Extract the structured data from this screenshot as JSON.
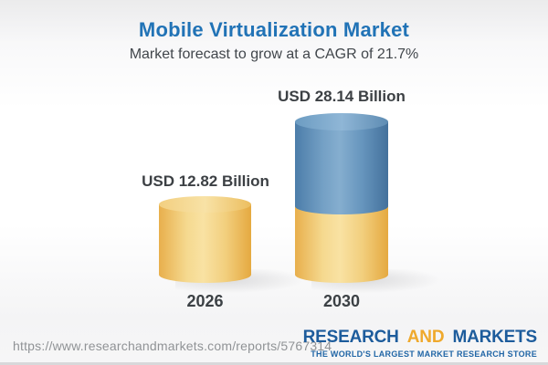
{
  "header": {
    "title": "Mobile Virtualization Market",
    "subtitle": "Market forecast to grow at a CAGR of 21.7%"
  },
  "chart_data": {
    "type": "bar",
    "bar_style": "3d-cylinder",
    "title": "Mobile Virtualization Market",
    "subtitle": "Market forecast to grow at a CAGR of 21.7%",
    "unit": "USD Billion",
    "cagr_percent": 21.7,
    "categories": [
      "2026",
      "2030"
    ],
    "values": [
      12.82,
      28.14
    ],
    "value_labels": [
      "USD 12.82 Billion",
      "USD 28.14 Billion"
    ],
    "colors": {
      "base_segment": "#F0C36A",
      "growth_segment": "#5B89B4",
      "title_text": "#2173B6",
      "label_text": "#3C4044"
    },
    "legend": "none",
    "grid": "off",
    "notes": "2030 cylinder stacks a blue growth segment on top of a yellow base segment equal in height to the 2026 cylinder"
  },
  "bars": [
    {
      "year": "2026",
      "label": "USD 12.82 Billion"
    },
    {
      "year": "2030",
      "label": "USD 28.14 Billion"
    }
  ],
  "footer": {
    "url": "https://www.researchandmarkets.com/reports/5767314",
    "logo": {
      "research": "RESEARCH",
      "and": "AND",
      "markets": "MARKETS",
      "tagline": "THE WORLD'S LARGEST MARKET RESEARCH STORE",
      "blue": "#1D5C9C",
      "gold": "#EFA92C"
    }
  }
}
